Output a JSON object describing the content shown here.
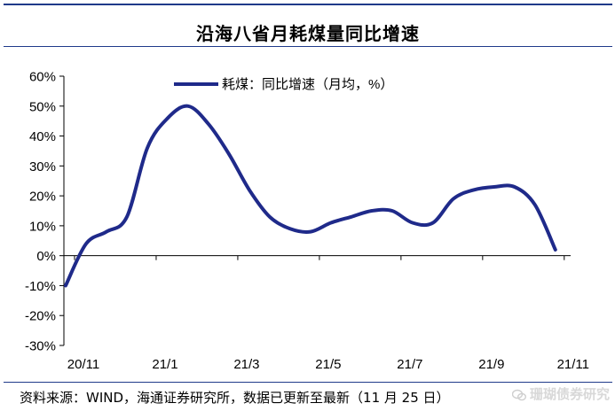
{
  "header": {
    "title": "沿海八省月耗煤量同比增速"
  },
  "footer": {
    "source": "资料来源：WIND，海通证券研究所，数据已更新至最新（11 月 25 日）",
    "watermark": "珊瑚债券研究"
  },
  "icons": {
    "watermark_icon": "wechat-icon"
  },
  "colors": {
    "accent": "#1f3a8a",
    "line": "#1f2a8a"
  },
  "chart_data": {
    "type": "line",
    "title": "沿海八省月耗煤量同比增速",
    "legend": {
      "label": "耗煤：同比增速（月均，%）",
      "placement": "top-center"
    },
    "y_ticks": [
      "60%",
      "50%",
      "40%",
      "30%",
      "20%",
      "10%",
      "0%",
      "-10%",
      "-20%",
      "-30%"
    ],
    "y_tick_values": [
      60,
      50,
      40,
      30,
      20,
      10,
      0,
      -10,
      -20,
      -30
    ],
    "ylim": [
      -30,
      60
    ],
    "x_ticks": [
      {
        "label": "20/11",
        "x": 0
      },
      {
        "label": "21/1",
        "x": 2
      },
      {
        "label": "21/3",
        "x": 4
      },
      {
        "label": "21/5",
        "x": 6
      },
      {
        "label": "21/7",
        "x": 8
      },
      {
        "label": "21/9",
        "x": 10
      },
      {
        "label": "21/11",
        "x": 12
      }
    ],
    "xlim": [
      0,
      12.2
    ],
    "grid": false,
    "series": [
      {
        "name": "耗煤：同比增速（月均，%）",
        "x": [
          0,
          0.5,
          1,
          1.5,
          2,
          2.5,
          3,
          3.5,
          4,
          4.5,
          5,
          5.5,
          6,
          6.5,
          7,
          7.5,
          8,
          8.5,
          9,
          9.5,
          10,
          10.5,
          11,
          11.5,
          12
        ],
        "y": [
          -10,
          4,
          8,
          13,
          36,
          46,
          50,
          44,
          34,
          22,
          13,
          9,
          8,
          11,
          13,
          15,
          15,
          11,
          11,
          19,
          22,
          23,
          23,
          17,
          2
        ]
      }
    ]
  }
}
